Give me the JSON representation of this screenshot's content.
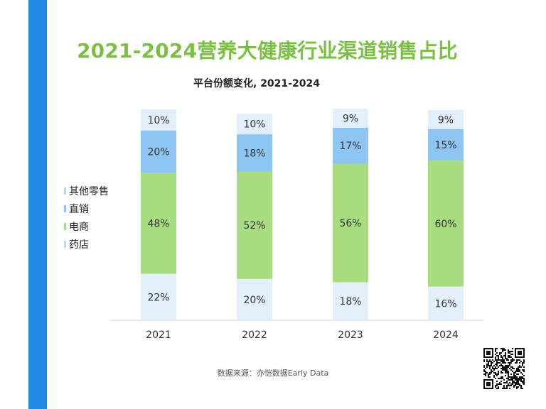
{
  "title": "2021-2024营养大健康行业渠道销售占比",
  "subtitle": "平台份额变化, 2021-2024",
  "source": "数据来源：亦恺数据Early Data",
  "colors": {
    "accent_bar": "#1e88e5",
    "title": "#7ac142"
  },
  "legend": [
    {
      "label": "其他零售",
      "color": "#e3f0fb"
    },
    {
      "label": "直销",
      "color": "#8ec5f2"
    },
    {
      "label": "电商",
      "color": "#a8dd7f"
    },
    {
      "label": "药店",
      "color": "#e3f0fb"
    }
  ],
  "chart_data": {
    "type": "bar",
    "stacked": true,
    "categories": [
      "2021",
      "2022",
      "2023",
      "2024"
    ],
    "series": [
      {
        "name": "药店",
        "values": [
          22,
          20,
          18,
          16
        ],
        "color": "#e3f0fb"
      },
      {
        "name": "电商",
        "values": [
          48,
          52,
          56,
          60
        ],
        "color": "#a8dd7f"
      },
      {
        "name": "直销",
        "values": [
          20,
          18,
          17,
          15
        ],
        "color": "#8ec5f2"
      },
      {
        "name": "其他零售",
        "values": [
          10,
          10,
          9,
          9
        ],
        "color": "#e3f0fb"
      }
    ],
    "value_suffix": "%",
    "ylim": [
      0,
      100
    ],
    "grid": false,
    "legend_position": "left"
  },
  "qr_icon": "qr-code-icon"
}
